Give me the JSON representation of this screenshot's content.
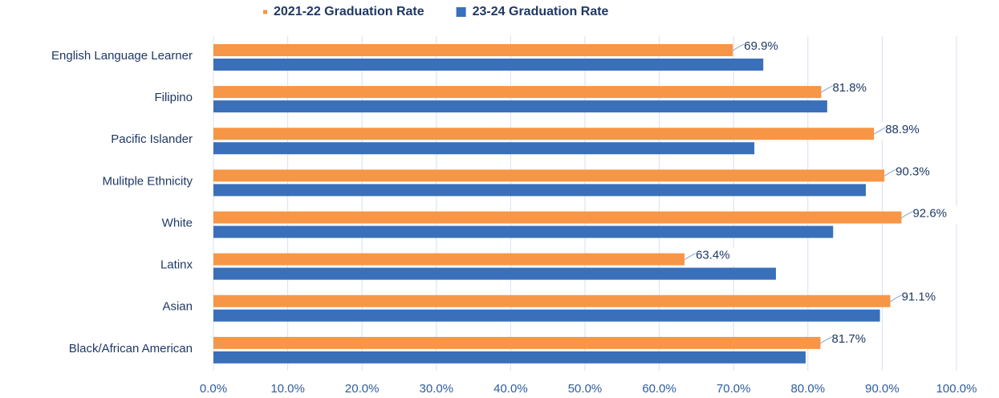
{
  "chart_data": {
    "type": "hbar",
    "categories": [
      "English Language Learner",
      "Filipino",
      "Pacific Islander",
      "Mulitple Ethnicity",
      "White",
      "Latinx",
      "Asian",
      "Black/African American"
    ],
    "series": [
      {
        "name": "2021-22 Graduation Rate",
        "color": "#f79646",
        "values": [
          69.9,
          81.8,
          88.9,
          90.3,
          92.6,
          63.4,
          91.1,
          81.7
        ],
        "value_labels": [
          "69.9%",
          "81.8%",
          "88.9%",
          "90.3%",
          "92.6%",
          "63.4%",
          "91.1%",
          "81.7%"
        ]
      },
      {
        "name": "23-24 Graduation Rate",
        "color": "#3a6fba",
        "values": [
          74.0,
          82.6,
          72.8,
          87.8,
          83.4,
          75.7,
          89.7,
          79.7
        ]
      }
    ],
    "xlim": [
      0,
      100
    ],
    "xticks": [
      {
        "value": 0,
        "label": "0.0%"
      },
      {
        "value": 10,
        "label": "10.0%"
      },
      {
        "value": 20,
        "label": "20.0%"
      },
      {
        "value": 30,
        "label": "30.0%"
      },
      {
        "value": 40,
        "label": "40.0%"
      },
      {
        "value": 50,
        "label": "50.0%"
      },
      {
        "value": 60,
        "label": "60.0%"
      },
      {
        "value": 70,
        "label": "70.0%"
      },
      {
        "value": 80,
        "label": "80.0%"
      },
      {
        "value": 90,
        "label": "90.0%"
      },
      {
        "value": 100,
        "label": "100.0%"
      }
    ],
    "grid": true,
    "legend": "top"
  }
}
